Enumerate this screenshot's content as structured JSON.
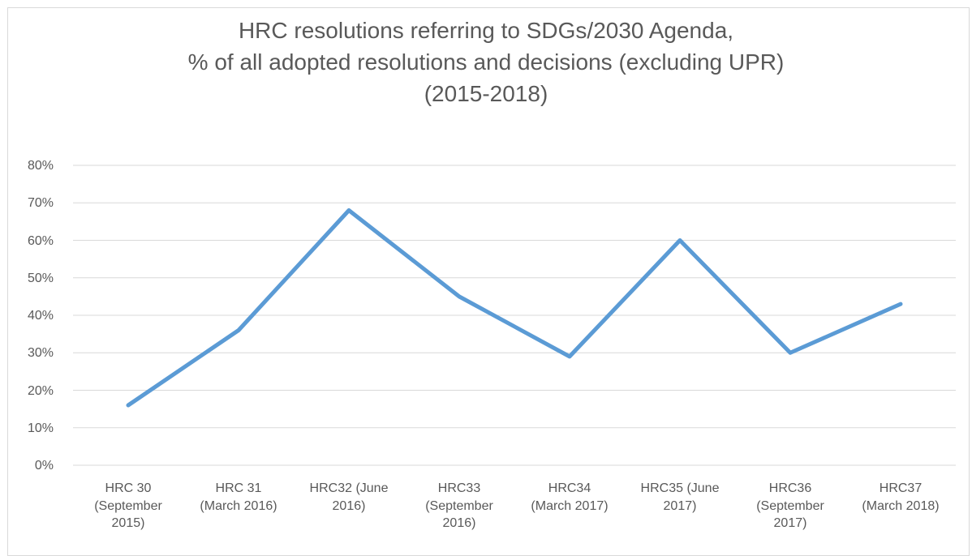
{
  "chart_data": {
    "type": "line",
    "title": "HRC resolutions referring to SDGs/2030 Agenda,\n% of all adopted resolutions and decisions (excluding UPR)\n(2015-2018)",
    "categories": [
      "HRC 30\n(September\n2015)",
      "HRC 31\n(March 2016)",
      "HRC32 (June\n2016)",
      "HRC33\n(September\n2016)",
      "HRC34\n(March 2017)",
      "HRC35 (June\n2017)",
      "HRC36\n(September\n2017)",
      "HRC37\n(March 2018)"
    ],
    "series": [
      {
        "name": "HRC resolutions referring to SDGs/2030 Agenda",
        "color": "#5b9bd5",
        "values": [
          16,
          36,
          68,
          45,
          29,
          60,
          30,
          43
        ]
      }
    ],
    "ylim": [
      0,
      80
    ],
    "yticks": [
      {
        "value": 0,
        "label": "0%"
      },
      {
        "value": 10,
        "label": "10%"
      },
      {
        "value": 20,
        "label": "20%"
      },
      {
        "value": 30,
        "label": "30%"
      },
      {
        "value": 40,
        "label": "40%"
      },
      {
        "value": 50,
        "label": "50%"
      },
      {
        "value": 60,
        "label": "60%"
      },
      {
        "value": 70,
        "label": "70%"
      },
      {
        "value": 80,
        "label": "80%"
      }
    ],
    "grid": true
  }
}
